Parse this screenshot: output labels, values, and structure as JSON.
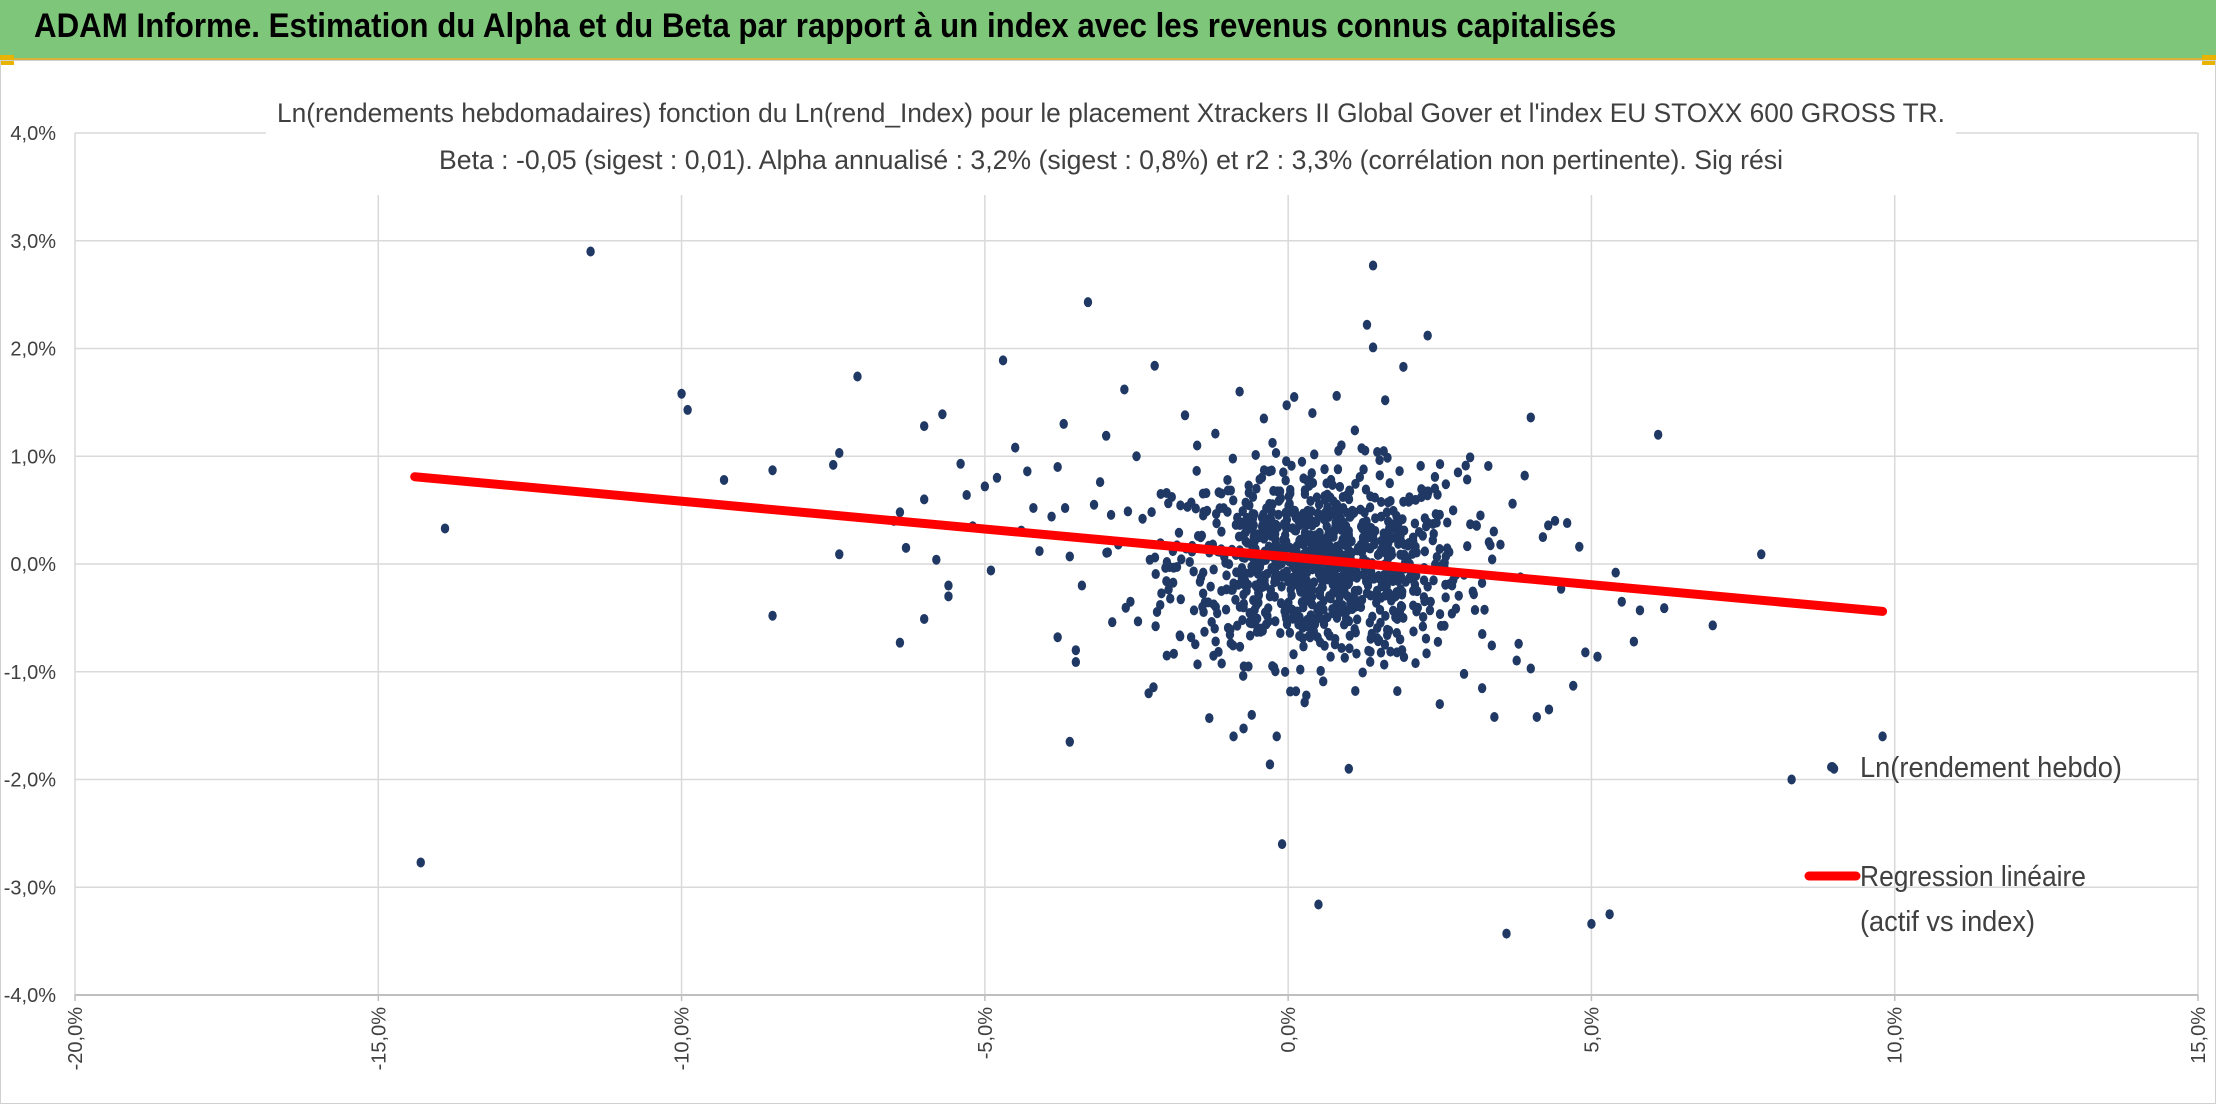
{
  "header": {
    "title": "ADAM Informe. Estimation du Alpha et du Beta par rapport à un index avec les revenus connus capitalisés"
  },
  "colors": {
    "banner": "#7ec77a",
    "points": "#203864",
    "regression": "#ff0000",
    "grid": "#d9d9d9"
  },
  "chart_data": {
    "type": "scatter",
    "title_lines": [
      "Ln(rendements hebdomadaires) fonction du Ln(rend_Index) pour le placement Xtrackers II Global Gover et l'index EU STOXX 600 GROSS TR.",
      "Beta : -0,05 (sigest : 0,01). Alpha annualisé : 3,2% (sigest : 0,8%) et r2 : 3,3% (corrélation non pertinente). Sig rési"
    ],
    "xlim": [
      -0.2,
      0.15
    ],
    "ylim": [
      -0.04,
      0.04
    ],
    "x_ticks": [
      -0.2,
      -0.15,
      -0.1,
      -0.05,
      0.0,
      0.05,
      0.1,
      0.15
    ],
    "x_tick_labels": [
      "-20,0%",
      "-15,0%",
      "-10,0%",
      "-5,0%",
      "0,0%",
      "5,0%",
      "10,0%",
      "15,0%"
    ],
    "y_ticks": [
      0.04,
      0.03,
      0.02,
      0.01,
      0.0,
      -0.01,
      -0.02,
      -0.03,
      -0.04
    ],
    "y_tick_labels": [
      "4,0%",
      "3,0%",
      "2,0%",
      "1,0%",
      "0,0%",
      "-1,0%",
      "-2,0%",
      "-3,0%",
      "-4,0%"
    ],
    "grid": true,
    "legend_position": "right",
    "series": [
      {
        "name": "Ln(rendement hebdo)",
        "kind": "scatter",
        "points": [
          [
            -0.143,
            -0.0277
          ],
          [
            -0.139,
            0.0033
          ],
          [
            -0.115,
            0.029
          ],
          [
            -0.1,
            0.0158
          ],
          [
            -0.099,
            0.0143
          ],
          [
            -0.093,
            0.0078
          ],
          [
            -0.085,
            0.0087
          ],
          [
            -0.085,
            -0.0048
          ],
          [
            -0.075,
            0.0092
          ],
          [
            -0.074,
            0.0103
          ],
          [
            -0.074,
            0.0009
          ],
          [
            -0.071,
            0.0174
          ],
          [
            -0.065,
            0.004
          ],
          [
            -0.064,
            0.0048
          ],
          [
            -0.064,
            -0.0073
          ],
          [
            -0.063,
            0.0015
          ],
          [
            -0.06,
            0.0128
          ],
          [
            -0.06,
            0.006
          ],
          [
            -0.06,
            -0.0051
          ],
          [
            -0.058,
            0.0004
          ],
          [
            -0.057,
            0.0139
          ],
          [
            -0.056,
            -0.002
          ],
          [
            -0.056,
            -0.003
          ],
          [
            -0.054,
            0.0093
          ],
          [
            -0.053,
            0.0064
          ],
          [
            -0.052,
            0.0035
          ],
          [
            -0.05,
            0.0072
          ],
          [
            -0.049,
            -0.0006
          ],
          [
            -0.048,
            0.008
          ],
          [
            -0.047,
            0.0189
          ],
          [
            -0.045,
            0.0108
          ],
          [
            -0.044,
            0.0031
          ],
          [
            -0.043,
            0.0086
          ],
          [
            -0.042,
            0.0052
          ],
          [
            -0.041,
            0.0012
          ],
          [
            -0.039,
            0.0044
          ],
          [
            -0.038,
            0.009
          ],
          [
            -0.038,
            -0.0068
          ],
          [
            -0.037,
            0.013
          ],
          [
            -0.036,
            -0.0165
          ],
          [
            -0.036,
            0.0007
          ],
          [
            -0.035,
            -0.0091
          ],
          [
            -0.035,
            -0.008
          ],
          [
            -0.034,
            -0.002
          ],
          [
            -0.033,
            0.0243
          ],
          [
            -0.032,
            0.0055
          ],
          [
            -0.031,
            0.0076
          ],
          [
            -0.03,
            0.0119
          ],
          [
            -0.029,
            -0.0054
          ],
          [
            -0.028,
            0.0018
          ],
          [
            -0.027,
            0.0162
          ],
          [
            -0.026,
            -0.0035
          ],
          [
            -0.025,
            0.01
          ],
          [
            -0.024,
            0.0042
          ],
          [
            -0.023,
            -0.012
          ],
          [
            -0.022,
            0.0184
          ],
          [
            -0.021,
            0.0065
          ],
          [
            -0.02,
            -0.0085
          ],
          [
            -0.018,
            0.0029
          ],
          [
            -0.017,
            0.0138
          ],
          [
            -0.016,
            -0.0068
          ],
          [
            -0.015,
            0.011
          ],
          [
            -0.014,
            0.0045
          ],
          [
            -0.013,
            -0.0143
          ],
          [
            -0.012,
            0.0121
          ],
          [
            -0.011,
            -0.0025
          ],
          [
            -0.01,
            0.0078
          ],
          [
            -0.009,
            -0.016
          ],
          [
            -0.008,
            0.016
          ],
          [
            -0.007,
            0.0057
          ],
          [
            -0.006,
            -0.014
          ],
          [
            -0.005,
            -0.0062
          ],
          [
            -0.004,
            0.0135
          ],
          [
            -0.003,
            -0.0186
          ],
          [
            -0.002,
            0.0103
          ],
          [
            -0.001,
            -0.026
          ],
          [
            0.0,
            0.0048
          ],
          [
            0.001,
            0.0155
          ],
          [
            0.002,
            -0.0098
          ],
          [
            0.003,
            -0.0122
          ],
          [
            0.004,
            0.014
          ],
          [
            0.005,
            -0.005
          ],
          [
            0.005,
            -0.0316
          ],
          [
            0.006,
            0.0088
          ],
          [
            0.007,
            -0.0086
          ],
          [
            0.008,
            0.0156
          ],
          [
            0.009,
            0.0034
          ],
          [
            0.01,
            -0.019
          ],
          [
            0.011,
            0.0124
          ],
          [
            0.012,
            -0.004
          ],
          [
            0.013,
            0.0222
          ],
          [
            0.014,
            0.0277
          ],
          [
            0.014,
            0.0201
          ],
          [
            0.015,
            -0.0071
          ],
          [
            0.016,
            0.0152
          ],
          [
            0.017,
            0.0012
          ],
          [
            0.018,
            -0.0118
          ],
          [
            0.019,
            0.0183
          ],
          [
            0.02,
            0.0062
          ],
          [
            0.021,
            -0.0092
          ],
          [
            0.023,
            0.0212
          ],
          [
            0.024,
            0.0028
          ],
          [
            0.025,
            -0.013
          ],
          [
            0.026,
            0.0074
          ],
          [
            0.027,
            -0.0046
          ],
          [
            0.028,
            0.0085
          ],
          [
            0.029,
            -0.0102
          ],
          [
            0.03,
            0.0099
          ],
          [
            0.031,
            0.0036
          ],
          [
            0.032,
            -0.0065
          ],
          [
            0.033,
            0.0091
          ],
          [
            0.034,
            -0.0142
          ],
          [
            0.035,
            0.0018
          ],
          [
            0.036,
            -0.0343
          ],
          [
            0.037,
            0.0056
          ],
          [
            0.038,
            -0.0074
          ],
          [
            0.039,
            0.0082
          ],
          [
            0.04,
            -0.0097
          ],
          [
            0.04,
            0.0136
          ],
          [
            0.041,
            -0.0142
          ],
          [
            0.042,
            0.0025
          ],
          [
            0.043,
            -0.0135
          ],
          [
            0.044,
            0.004
          ],
          [
            0.045,
            -0.0023
          ],
          [
            0.046,
            0.0038
          ],
          [
            0.047,
            -0.0113
          ],
          [
            0.048,
            0.0016
          ],
          [
            0.049,
            -0.0082
          ],
          [
            0.05,
            -0.0334
          ],
          [
            0.051,
            -0.0086
          ],
          [
            0.053,
            -0.0325
          ],
          [
            0.054,
            -0.0008
          ],
          [
            0.055,
            -0.0035
          ],
          [
            0.057,
            -0.0072
          ],
          [
            0.058,
            -0.0043
          ],
          [
            0.061,
            0.012
          ],
          [
            0.062,
            -0.0041
          ],
          [
            0.07,
            -0.0057
          ],
          [
            0.078,
            0.0009
          ],
          [
            0.083,
            -0.02
          ],
          [
            0.09,
            -0.019
          ],
          [
            0.098,
            -0.016
          ],
          [
            -0.019,
            0.0012
          ],
          [
            -0.014,
            -0.0008
          ],
          [
            -0.011,
            0.003
          ],
          [
            -0.009,
            -0.0018
          ],
          [
            -0.007,
            0.0021
          ],
          [
            -0.005,
            -0.0009
          ],
          [
            -0.004,
            0.004
          ],
          [
            -0.003,
            -0.003
          ],
          [
            -0.002,
            0.0015
          ],
          [
            -0.001,
            -0.0012
          ],
          [
            0.001,
            0.0008
          ],
          [
            0.002,
            -0.0024
          ],
          [
            0.003,
            0.0036
          ],
          [
            0.004,
            -0.0005
          ],
          [
            0.006,
            0.0022
          ],
          [
            0.007,
            -0.0032
          ],
          [
            0.008,
            0.0011
          ],
          [
            0.009,
            -0.0016
          ],
          [
            0.01,
            0.0027
          ],
          [
            0.011,
            -0.0008
          ],
          [
            0.012,
            0.0018
          ],
          [
            0.013,
            -0.0027
          ],
          [
            0.015,
            0.0009
          ],
          [
            0.016,
            -0.0014
          ],
          [
            0.017,
            0.0033
          ],
          [
            0.019,
            -0.0004
          ],
          [
            0.021,
            0.0016
          ],
          [
            0.023,
            -0.0021
          ],
          [
            0.026,
            0.0007
          ],
          [
            0.029,
            -0.001
          ]
        ]
      },
      {
        "name": "Regression linéaire (actif vs index)",
        "name_lines": [
          "Regression linéaire",
          "(actif vs index)"
        ],
        "kind": "line",
        "points": [
          [
            -0.144,
            0.0081
          ],
          [
            0.098,
            -0.0044
          ]
        ]
      }
    ],
    "cluster": {
      "center": [
        0.005,
        0.0
      ],
      "sd": [
        0.012,
        0.0045
      ],
      "count": 950
    }
  }
}
